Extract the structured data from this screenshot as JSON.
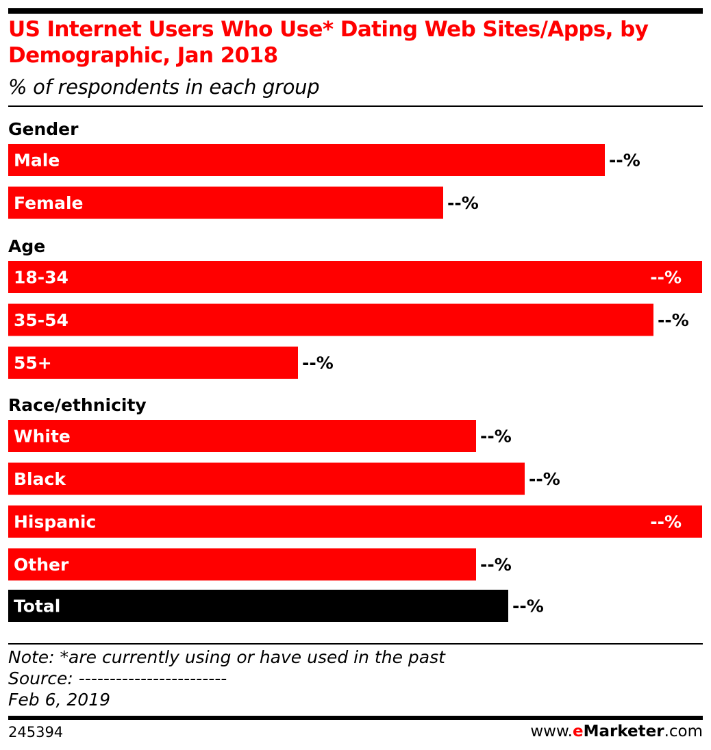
{
  "header": {
    "title": "US Internet Users Who Use* Dating Web Sites/Apps, by Demographic, Jan 2018",
    "subtitle": "% of respondents in each group"
  },
  "chart_data": {
    "type": "bar",
    "orientation": "horizontal",
    "value_suffix": "%",
    "value_display": "--%",
    "groups": [
      {
        "label": "Gender",
        "items": [
          {
            "category": "Male",
            "value": 86.0,
            "color": "#ff0000"
          },
          {
            "category": "Female",
            "value": 62.7,
            "color": "#ff0000"
          }
        ]
      },
      {
        "label": "Age",
        "items": [
          {
            "category": "18-34",
            "value": 100.0,
            "color": "#ff0000"
          },
          {
            "category": "35-54",
            "value": 93.0,
            "color": "#ff0000"
          },
          {
            "category": "55+",
            "value": 41.8,
            "color": "#ff0000"
          }
        ]
      },
      {
        "label": "Race/ethnicity",
        "items": [
          {
            "category": "White",
            "value": 67.4,
            "color": "#ff0000"
          },
          {
            "category": "Black",
            "value": 74.4,
            "color": "#ff0000"
          },
          {
            "category": "Hispanic",
            "value": 100.0,
            "color": "#ff0000"
          },
          {
            "category": "Other",
            "value": 67.4,
            "color": "#ff0000"
          }
        ]
      },
      {
        "label": "",
        "items": [
          {
            "category": "Total",
            "value": 72.1,
            "color": "#000000"
          }
        ]
      }
    ]
  },
  "footer": {
    "note": "Note: *are currently using or have used in the past",
    "source": "Source: ------------------------",
    "date": "Feb 6, 2019",
    "chart_id": "245394",
    "brand_prefix": "www.",
    "brand_e": "e",
    "brand_name": "Marketer",
    "brand_suffix": ".com"
  }
}
